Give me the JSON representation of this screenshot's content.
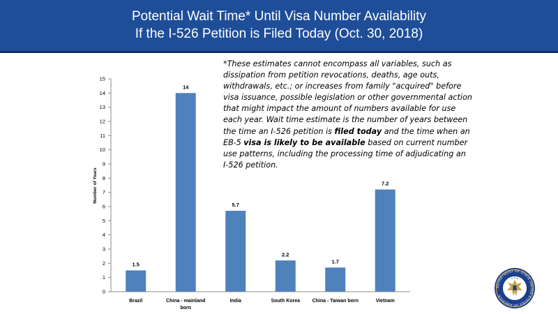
{
  "header": {
    "title_line1": "Potential Wait Time* Until Visa Number Availability",
    "title_line2": "If the I-526 Petition is Filed Today (Oct. 30, 2018)"
  },
  "footnote": {
    "part1": "*These estimates cannot encompass all variables, such as dissipation from petition revocations, deaths, age outs, withdrawals, etc.; or increases from family \"acquired\" before visa issuance, possible legislation or other governmental action that might impact the amount of numbers available  for use each year. Wait time estimate is the number of years between the time an I-526 petition is ",
    "bold1": "filed today",
    "part2": " and the time when an EB-5 ",
    "bold2": "visa is likely to be available",
    "part3": " based on current number use patterns, including the processing time of adjudicating an I-526 petition."
  },
  "seal": {
    "text": "DEPARTMENT OF STATE UNITED STATES OF AMERICA",
    "colors": {
      "ring": "#1c3f8a",
      "gold": "#c9a54a",
      "white": "#ffffff"
    }
  },
  "colors": {
    "header_bg": "#1f4e99",
    "bar": "#4f81bd",
    "axis": "#888888"
  },
  "chart_data": {
    "type": "bar",
    "title": "",
    "xlabel": "",
    "ylabel": "Number of Years",
    "ylim": [
      0,
      15
    ],
    "yticks": [
      "0",
      "1",
      "2",
      "3",
      "4",
      "5",
      "6",
      "7",
      "8",
      "9",
      "10",
      "11",
      "12",
      "13",
      "14",
      "15"
    ],
    "categories": [
      [
        "Brazil"
      ],
      [
        "China - mainland",
        "born"
      ],
      [
        "India"
      ],
      [
        "South Korea"
      ],
      [
        "China - Taiwan born"
      ],
      [
        "Vietnam"
      ]
    ],
    "values": [
      1.5,
      14,
      5.7,
      2.2,
      1.7,
      7.2
    ],
    "data_labels": [
      "1.5",
      "14",
      "5.7",
      "2.2",
      "1.7",
      "7.2"
    ],
    "grid": false,
    "legend": "none"
  }
}
